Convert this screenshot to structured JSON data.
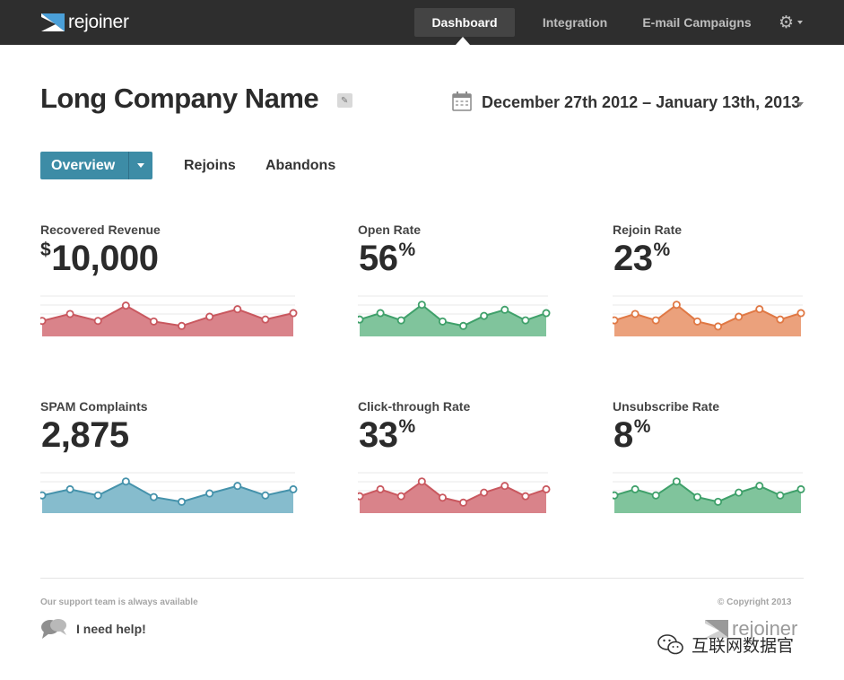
{
  "app": {
    "logo_text": "rejoiner"
  },
  "nav": {
    "items": [
      {
        "label": "Dashboard",
        "active": true
      },
      {
        "label": "Integration",
        "active": false
      },
      {
        "label": "E-mail Campaigns",
        "active": false
      }
    ],
    "settings_icon": "gear-icon"
  },
  "header": {
    "company_name": "Long Company Name",
    "edit_icon": "pencil-icon",
    "calendar_icon": "calendar-icon",
    "date_range": "December 27th 2012 – January 13th, 2013"
  },
  "tabs": {
    "primary": "Overview",
    "others": [
      "Rejoins",
      "Abandons"
    ]
  },
  "metrics": [
    {
      "label": "Recovered Revenue",
      "prefix": "$",
      "value": "10,000",
      "suffix": "",
      "color": "#c9585f",
      "fill": "#d9838a",
      "points": [
        0.3,
        0.55,
        0.3,
        0.85,
        0.28,
        0.12,
        0.45,
        0.72,
        0.35,
        0.58
      ]
    },
    {
      "label": "Open Rate",
      "prefix": "",
      "value": "56",
      "suffix": "%",
      "color": "#3fa06a",
      "fill": "#80c49c",
      "points": [
        0.35,
        0.58,
        0.32,
        0.88,
        0.28,
        0.12,
        0.48,
        0.7,
        0.32,
        0.58
      ]
    },
    {
      "label": "Rejoin Rate",
      "prefix": "",
      "value": "23",
      "suffix": "%",
      "color": "#e07844",
      "fill": "#eba17c",
      "points": [
        0.32,
        0.55,
        0.32,
        0.88,
        0.28,
        0.1,
        0.45,
        0.72,
        0.35,
        0.58
      ]
    },
    {
      "label": "SPAM Complaints",
      "prefix": "",
      "value": "2,875",
      "suffix": "",
      "color": "#4592ab",
      "fill": "#86bccd",
      "points": [
        0.38,
        0.6,
        0.38,
        0.88,
        0.32,
        0.15,
        0.45,
        0.72,
        0.38,
        0.6
      ]
    },
    {
      "label": "Click-through Rate",
      "prefix": "",
      "value": "33",
      "suffix": "%",
      "color": "#c9585f",
      "fill": "#d9838a",
      "points": [
        0.35,
        0.6,
        0.35,
        0.88,
        0.3,
        0.12,
        0.48,
        0.72,
        0.35,
        0.6
      ]
    },
    {
      "label": "Unsubscribe Rate",
      "prefix": "",
      "value": "8",
      "suffix": "%",
      "color": "#3fa06a",
      "fill": "#80c49c",
      "points": [
        0.38,
        0.6,
        0.38,
        0.88,
        0.32,
        0.15,
        0.48,
        0.72,
        0.38,
        0.6
      ]
    }
  ],
  "footer": {
    "support_text": "Our support team is always available",
    "help_icon": "chat-bubbles-icon",
    "help_label": "I need help!",
    "copyright": "© Copyright 2013",
    "logo_text": "rejoiner"
  },
  "watermark": {
    "icon": "wechat-icon",
    "text": "互联网数据官"
  }
}
